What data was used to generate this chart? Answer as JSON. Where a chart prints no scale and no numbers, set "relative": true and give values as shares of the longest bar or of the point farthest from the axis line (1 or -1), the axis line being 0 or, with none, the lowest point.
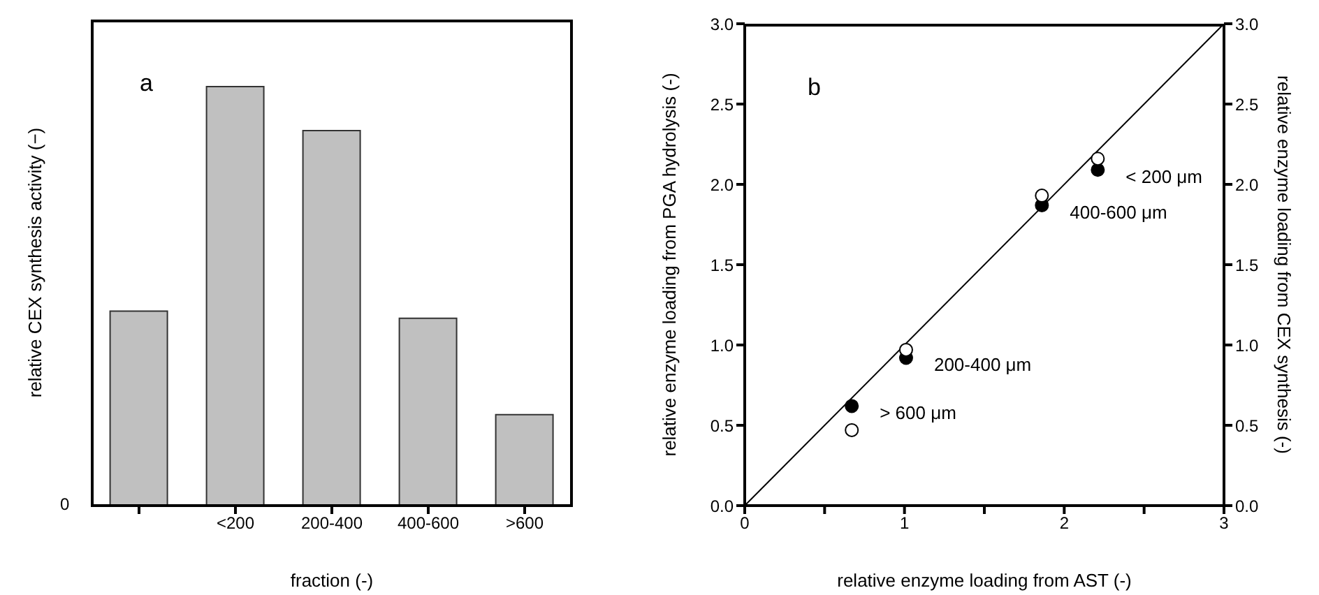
{
  "chart_data": [
    {
      "type": "bar",
      "relative": true,
      "categories": [
        null,
        "<200",
        "200-400",
        "400-600",
        ">600"
      ],
      "values": [
        0.464,
        1,
        0.895,
        0.447,
        0.217
      ],
      "color": "#c0c0c0",
      "xlabel": "fraction  (-)",
      "ylabel": "relative CEX synthesis activity  (−)",
      "annotations": [
        "a",
        "0"
      ]
    },
    {
      "type": "scatter",
      "xlabel": "relative enzyme loading from AST (-)",
      "ylabel": "relative enzyme loading from PGA hydrolysis (-)",
      "y2label": "relative enzyme loading from CEX synthesis (-)",
      "xlim": [
        0,
        3
      ],
      "xticks": [
        0,
        {
          "value": 0.5,
          "label": null
        },
        1,
        {
          "value": 1.5,
          "label": null
        },
        2,
        {
          "value": 2.5,
          "label": null
        },
        3
      ],
      "ylim": [
        0,
        3
      ],
      "yticks": [
        {
          "value": 0,
          "label": "0.0"
        },
        0.5,
        {
          "value": 1,
          "label": "1.0"
        },
        1.5,
        {
          "value": 2,
          "label": "2.0"
        },
        2.5,
        {
          "value": 3,
          "label": "3.0"
        }
      ],
      "y2lim": [
        0,
        3
      ],
      "y2ticks": [
        {
          "value": 0,
          "label": "0.0"
        },
        0.5,
        {
          "value": 1,
          "label": "1.0"
        },
        1.5,
        {
          "value": 2,
          "label": "2.0"
        },
        2.5,
        {
          "value": 3,
          "label": "3.0"
        }
      ],
      "marker": "circle",
      "series": [
        {
          "type": "line",
          "color": "#000000",
          "x": [
            0,
            3
          ],
          "values": [
            0,
            3
          ],
          "marker": "none"
        },
        {
          "color": "#000000",
          "x": [
            0.67,
            1.01,
            1.86,
            2.21
          ],
          "values": [
            0.62,
            0.92,
            1.87,
            2.09
          ]
        },
        {
          "color": "#ffffff",
          "x": [
            0.67,
            1.01,
            1.86,
            2.21
          ],
          "values": [
            0.47,
            0.97,
            1.93,
            2.16
          ]
        }
      ],
      "annotations": [
        "b",
        {
          "text": "< 200 μm",
          "x": 2.21,
          "y": 2.09
        },
        {
          "text": "400-600 μm",
          "x": 1.86,
          "y": 1.87
        },
        {
          "text": "200-400 μm",
          "x": 1.01,
          "y": 0.92
        },
        {
          "text": "> 600 μm",
          "x": 0.67,
          "y": 0.62
        }
      ]
    }
  ]
}
